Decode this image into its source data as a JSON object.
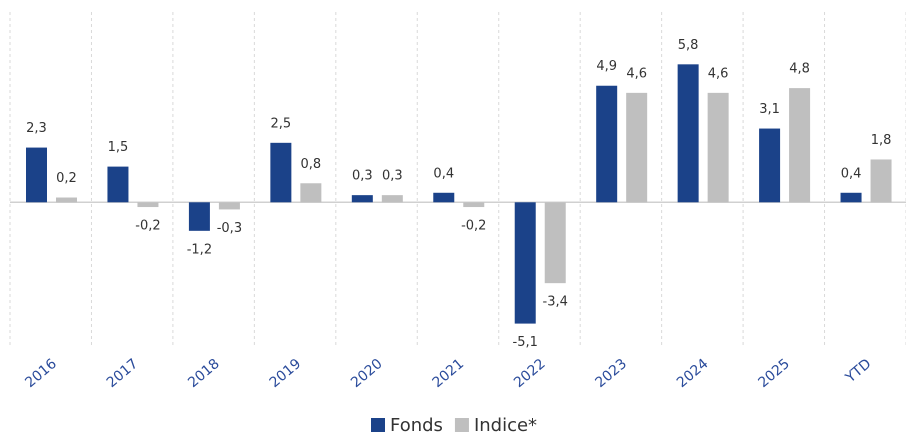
{
  "chart_data": {
    "type": "bar",
    "categories": [
      "2016",
      "2017",
      "2018",
      "2019",
      "2020",
      "2021",
      "2022",
      "2023",
      "2024",
      "2025",
      "YTD"
    ],
    "series": [
      {
        "name": "Fonds",
        "color": "#1b4289",
        "values": [
          2.3,
          1.5,
          -1.2,
          2.5,
          0.3,
          0.4,
          -5.1,
          4.9,
          5.8,
          3.1,
          0.4
        ],
        "value_labels": [
          "2,3",
          "1,5",
          "-1,2",
          "2,5",
          "0,3",
          "0,4",
          "-5,1",
          "4,9",
          "5,8",
          "3,1",
          "0,4"
        ]
      },
      {
        "name": "Indice*",
        "color": "#bfbfbf",
        "values": [
          0.2,
          -0.2,
          -0.3,
          0.8,
          0.3,
          -0.2,
          -3.4,
          4.6,
          4.6,
          4.8,
          1.8
        ],
        "value_labels": [
          "0,2",
          "-0,2",
          "-0,3",
          "0,8",
          "0,3",
          "-0,2",
          "-3,4",
          "4,6",
          "4,6",
          "4,8",
          "1,8"
        ]
      }
    ],
    "ylim": [
      -6,
      8
    ],
    "legend": "bottom"
  }
}
